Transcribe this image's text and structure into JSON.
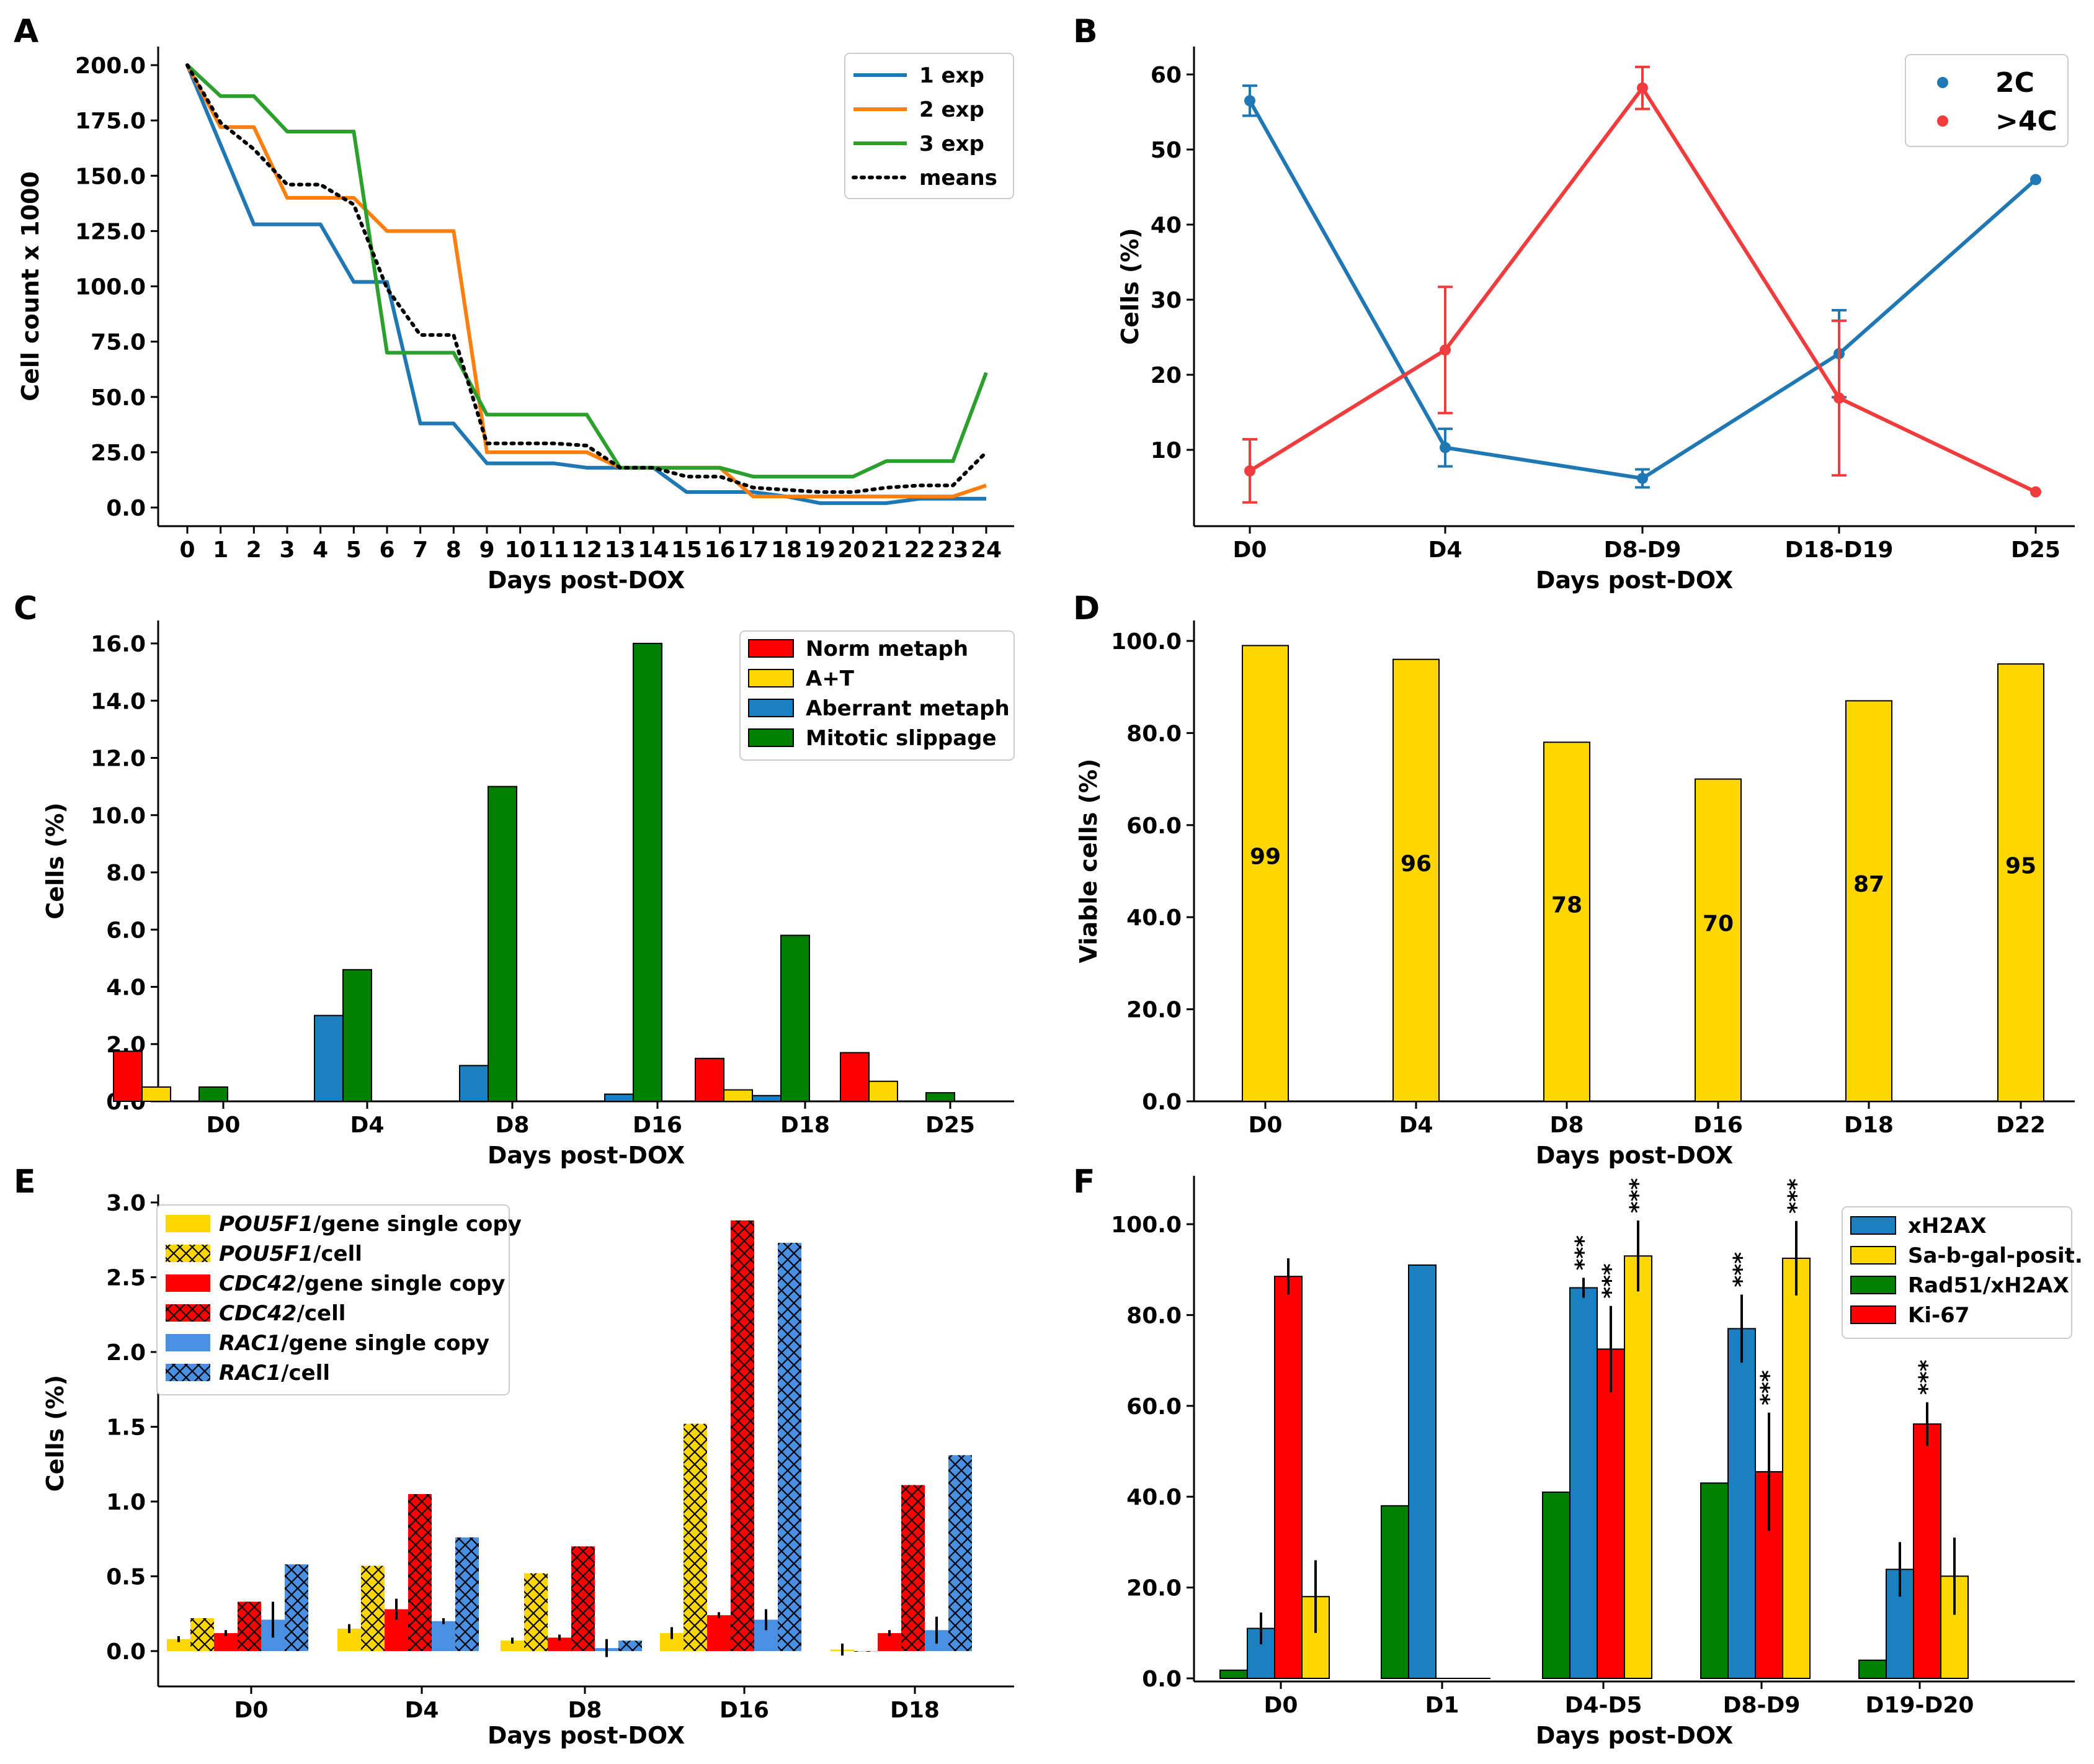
{
  "colors": {
    "blue": "#1f77b4",
    "orange": "#ff7f0e",
    "green": "#2ca02c",
    "red": "#ff0000",
    "red_line": "#f03c3c",
    "yellow": "#ffd700",
    "steel": "#1b80c0",
    "dkgreen": "#007f00",
    "ltblue": "#4a90e2"
  },
  "chart_data": [
    {
      "panel": "A",
      "type": "line",
      "xlabel": "Days post-DOX",
      "ylabel": "Cell count x 1000",
      "x": [
        0,
        1,
        2,
        3,
        4,
        5,
        6,
        7,
        8,
        9,
        10,
        11,
        12,
        13,
        14,
        15,
        16,
        17,
        18,
        19,
        20,
        21,
        22,
        23,
        24
      ],
      "xticks": [
        "0",
        "1",
        "2",
        "3",
        "4",
        "5",
        "6",
        "7",
        "8",
        "9",
        "10",
        "11",
        "12",
        "13",
        "14",
        "15",
        "16",
        "17",
        "18",
        "19",
        "20",
        "21",
        "22",
        "23",
        "24"
      ],
      "ylim": [
        -10,
        212
      ],
      "yticks": [
        0,
        25,
        50,
        75,
        100,
        125,
        150,
        175,
        200
      ],
      "ytick_labels": [
        "0.0",
        "25.0",
        "50.0",
        "75.0",
        "100.0",
        "125.0",
        "150.0",
        "175.0",
        "200.0"
      ],
      "legend_position": "top-right",
      "series": [
        {
          "name": "1 exp",
          "style": "solid",
          "color": "#1f77b4",
          "values": [
            200,
            164,
            128,
            128,
            128,
            102,
            102,
            38,
            38,
            20,
            20,
            20,
            18,
            18,
            18,
            7,
            7,
            7,
            5,
            2,
            2,
            2,
            4,
            4,
            4
          ]
        },
        {
          "name": "2 exp",
          "style": "solid",
          "color": "#ff7f0e",
          "values": [
            200,
            172,
            172,
            140,
            140,
            140,
            125,
            125,
            125,
            25,
            25,
            25,
            25,
            18,
            18,
            18,
            18,
            5,
            5,
            5,
            5,
            5,
            5,
            5,
            10
          ]
        },
        {
          "name": "3 exp",
          "style": "solid",
          "color": "#2ca02c",
          "values": [
            200,
            186,
            186,
            170,
            170,
            170,
            70,
            70,
            70,
            42,
            42,
            42,
            42,
            18,
            18,
            18,
            18,
            14,
            14,
            14,
            14,
            21,
            21,
            21,
            61
          ]
        },
        {
          "name": "means",
          "style": "dotted",
          "color": "#000000",
          "values": [
            200,
            174,
            162,
            146,
            146,
            137,
            99,
            78,
            78,
            29,
            29,
            29,
            28,
            18,
            18,
            14,
            14,
            9,
            8,
            7,
            7,
            9,
            10,
            10,
            25
          ]
        }
      ]
    },
    {
      "panel": "B",
      "type": "line",
      "xlabel": "Days post-DOX",
      "ylabel": "Cells (%)",
      "categories": [
        "D0",
        "D4",
        "D8-D9",
        "D18-D19",
        "D25"
      ],
      "ylim": [
        0,
        63
      ],
      "yticks": [
        10,
        20,
        30,
        40,
        50,
        60
      ],
      "ytick_labels": [
        "10",
        "20",
        "30",
        "40",
        "50",
        "60"
      ],
      "legend_position": "top-right",
      "series": [
        {
          "name": "2C",
          "color": "#1f77b4",
          "values": [
            56.5,
            10.3,
            6.2,
            22.8,
            46.0
          ],
          "errors": [
            2.0,
            2.5,
            1.2,
            5.8,
            0.3
          ]
        },
        {
          "name": ">4C",
          "color": "#f03c3c",
          "values": [
            7.2,
            23.3,
            58.2,
            16.9,
            4.4
          ],
          "errors": [
            4.2,
            8.4,
            2.8,
            10.3,
            0.3
          ]
        }
      ]
    },
    {
      "panel": "C",
      "type": "bar",
      "xlabel": "Days post-DOX",
      "ylabel": "Cells (%)",
      "categories": [
        "D0",
        "D4",
        "D8",
        "D16",
        "D18",
        "D25"
      ],
      "ylim": [
        0,
        16.8
      ],
      "yticks": [
        0,
        2,
        4,
        6,
        8,
        10,
        12,
        14,
        16
      ],
      "ytick_labels": [
        "0.0",
        "2.0",
        "4.0",
        "6.0",
        "8.0",
        "10.0",
        "12.0",
        "14.0",
        "16.0"
      ],
      "legend_position": "top-right",
      "series": [
        {
          "name": "Norm metaph",
          "color": "#ff0000",
          "values": [
            1.75,
            0.0,
            0.0,
            0.0,
            1.5,
            1.7
          ]
        },
        {
          "name": "A+T",
          "color": "#ffd700",
          "values": [
            0.5,
            0.0,
            0.0,
            0.0,
            0.4,
            0.7
          ]
        },
        {
          "name": "Aberrant metaph",
          "color": "#1b80c0",
          "values": [
            0.0,
            3.0,
            1.25,
            0.25,
            0.2,
            0.0
          ]
        },
        {
          "name": "Mitotic slippage",
          "color": "#007f00",
          "values": [
            0.5,
            4.6,
            11.0,
            16.0,
            5.8,
            0.3
          ]
        }
      ]
    },
    {
      "panel": "D",
      "type": "bar",
      "xlabel": "Days post-DOX",
      "ylabel": "Viable cells (%)",
      "categories": [
        "D0",
        "D4",
        "D8",
        "D16",
        "D18",
        "D22"
      ],
      "values": [
        99,
        96,
        78,
        70,
        87,
        95
      ],
      "data_labels": [
        "99",
        "96",
        "78",
        "70",
        "87",
        "95"
      ],
      "ylim": [
        0,
        104
      ],
      "yticks": [
        0,
        20,
        40,
        60,
        80,
        100
      ],
      "ytick_labels": [
        "0.0",
        "20.0",
        "40.0",
        "60.0",
        "80.0",
        "100.0"
      ],
      "color": "#ffd700"
    },
    {
      "panel": "E",
      "type": "bar",
      "xlabel": "Days post-DOX",
      "ylabel": "Cells (%)",
      "categories": [
        "D0",
        "D4",
        "D8",
        "D16",
        "D18"
      ],
      "ylim": [
        -0.1,
        3.0
      ],
      "yticks": [
        0.0,
        0.5,
        1.0,
        1.5,
        2.0,
        2.5,
        3.0
      ],
      "ytick_labels": [
        "0.0",
        "0.5",
        "1.0",
        "1.5",
        "2.0",
        "2.5",
        "3.0"
      ],
      "legend_position": "top-left",
      "series": [
        {
          "name_gene": "POU5F1",
          "name_rest": "/gene single copy",
          "color": "#ffd700",
          "hatch": false,
          "values": [
            0.08,
            0.15,
            0.07,
            0.12,
            0.01
          ],
          "errors": [
            0.02,
            0.03,
            0.02,
            0.04,
            0.04
          ]
        },
        {
          "name_gene": "POU5F1",
          "name_rest": "/cell",
          "color": "#ffd700",
          "hatch": true,
          "values": [
            0.22,
            0.57,
            0.52,
            1.52,
            0.0
          ],
          "errors": [
            0,
            0,
            0,
            0,
            0
          ]
        },
        {
          "name_gene": "CDC42",
          "name_rest": "/gene single copy",
          "color": "#ff0000",
          "hatch": false,
          "values": [
            0.12,
            0.28,
            0.09,
            0.24,
            0.12
          ],
          "errors": [
            0.02,
            0.07,
            0.02,
            0.02,
            0.02
          ]
        },
        {
          "name_gene": "CDC42",
          "name_rest": "/cell",
          "color": "#ff0000",
          "hatch": true,
          "values": [
            0.33,
            1.05,
            0.7,
            2.88,
            1.11
          ],
          "errors": [
            0,
            0,
            0,
            0,
            0
          ]
        },
        {
          "name_gene": "RAC1",
          "name_rest": "/gene single copy",
          "color": "#4a90e2",
          "hatch": false,
          "values": [
            0.21,
            0.2,
            0.02,
            0.21,
            0.14
          ],
          "errors": [
            0.12,
            0.02,
            0.06,
            0.07,
            0.09
          ]
        },
        {
          "name_gene": "RAC1",
          "name_rest": "/cell",
          "color": "#4a90e2",
          "hatch": true,
          "values": [
            0.58,
            0.76,
            0.07,
            2.73,
            1.31
          ],
          "errors": [
            0,
            0,
            0,
            0,
            0
          ]
        }
      ]
    },
    {
      "panel": "F",
      "type": "bar",
      "xlabel": "Days post-DOX",
      "ylabel": "",
      "categories": [
        "D0",
        "D1",
        "D4-D5",
        "D8-D9",
        "D19-D20"
      ],
      "ylim": [
        0,
        104
      ],
      "yticks": [
        0,
        20,
        40,
        60,
        80,
        100
      ],
      "ytick_labels": [
        "0.0",
        "20.0",
        "40.0",
        "60.0",
        "80.0",
        "100.0"
      ],
      "legend_position": "top-right",
      "legend_order": [
        "xH2AX",
        "Sa-b-gal-posit.",
        "Rad51/xH2AX",
        "Ki-67"
      ],
      "series": [
        {
          "name": "Rad51/xH2AX",
          "color": "#007f00",
          "values": [
            1.8,
            38,
            41,
            43,
            4
          ],
          "errors": [
            0,
            0,
            0,
            0,
            0
          ],
          "stars": [
            false,
            false,
            false,
            false,
            false
          ]
        },
        {
          "name": "xH2AX",
          "color": "#1b80c0",
          "values": [
            11,
            91,
            86,
            77,
            24
          ],
          "errors": [
            3.5,
            0,
            2.2,
            7.5,
            6
          ],
          "stars": [
            false,
            false,
            true,
            true,
            false
          ]
        },
        {
          "name": "Ki-67",
          "color": "#ff0000",
          "values": [
            88.5,
            0,
            72.5,
            45.5,
            56
          ],
          "errors": [
            4,
            0,
            9.5,
            13,
            4.8
          ],
          "stars": [
            false,
            false,
            true,
            true,
            true
          ]
        },
        {
          "name": "Sa-b-gal-posit.",
          "color": "#ffd700",
          "values": [
            18,
            0,
            93,
            92.5,
            22.5
          ],
          "errors": [
            8,
            0,
            7.8,
            8.2,
            8.5
          ],
          "stars": [
            false,
            false,
            true,
            true,
            false
          ]
        }
      ],
      "star_label": "***"
    }
  ]
}
